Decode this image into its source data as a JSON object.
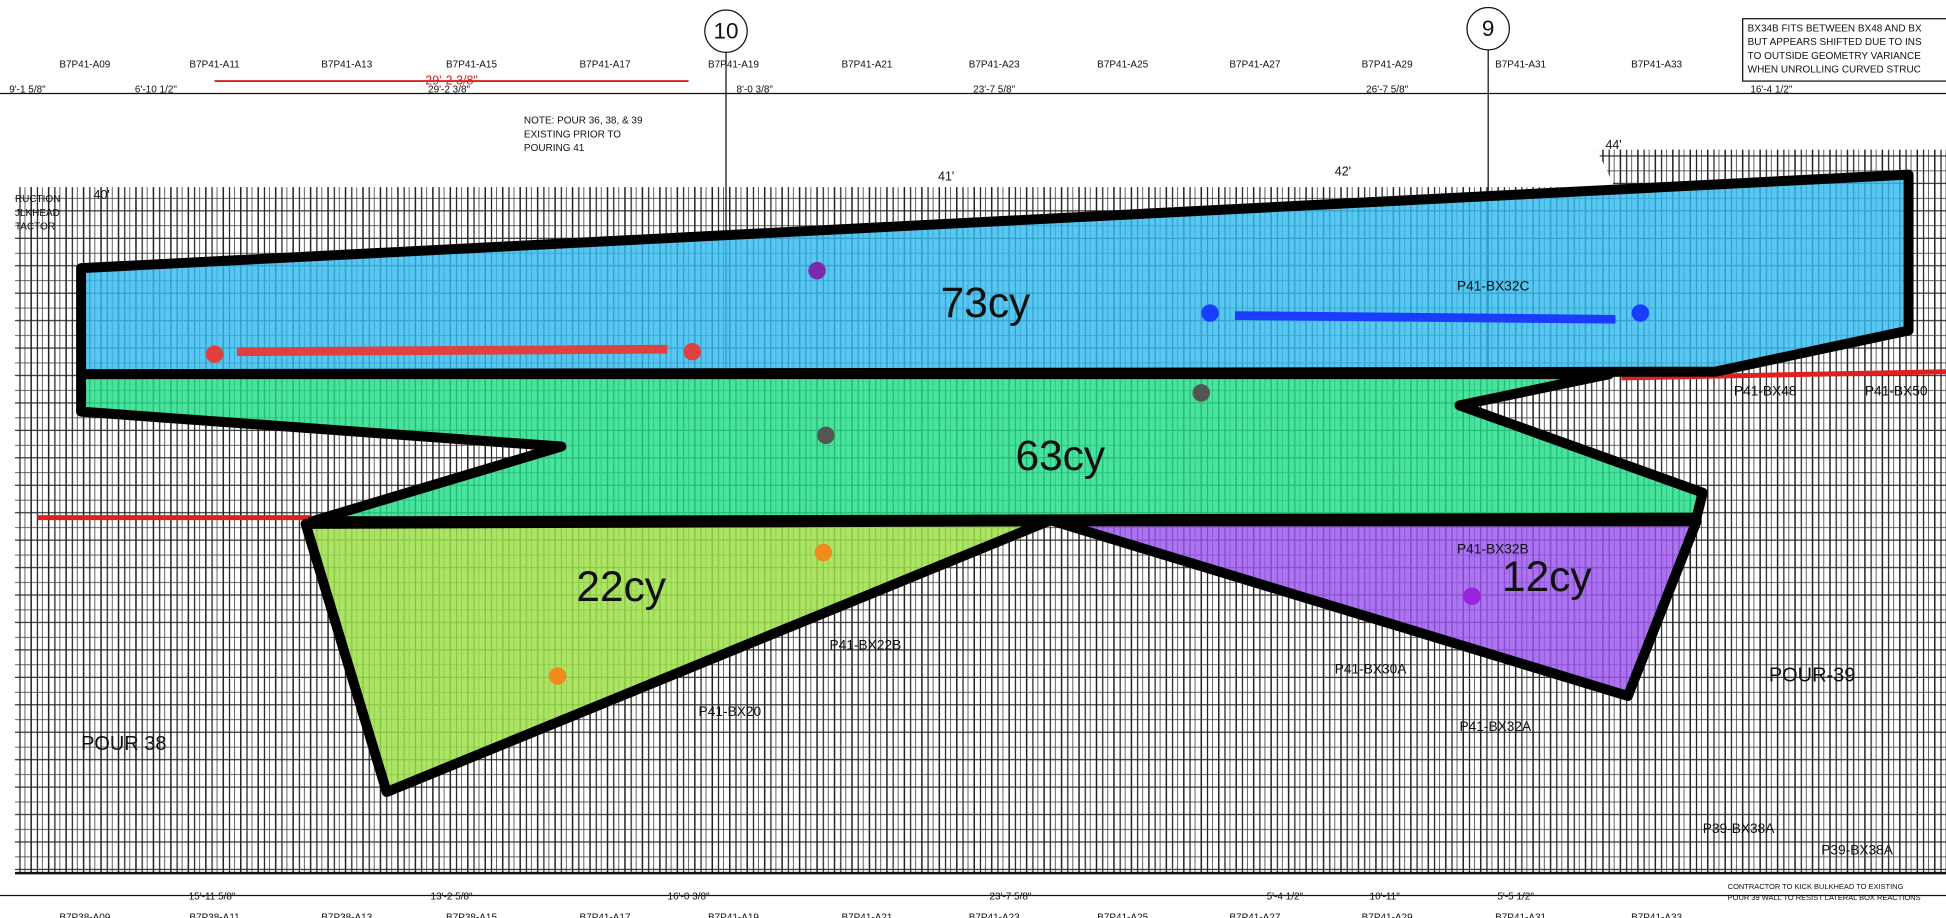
{
  "grid_top": [
    "B7P41-A09",
    "B7P41-A11",
    "B7P41-A13",
    "B7P41-A15",
    "B7P41-A17",
    "B7P41-A19",
    "B7P41-A21",
    "B7P41-A23",
    "B7P41-A25",
    "B7P41-A27",
    "B7P41-A29",
    "B7P41-A31",
    "B7P41-A33"
  ],
  "grid_bottom": [
    "B7P38-A09",
    "B7P38-A11",
    "B7P38-A13",
    "B7P38-A15",
    "B7P41-A17",
    "B7P41-A19",
    "B7P41-A21",
    "B7P41-A23",
    "B7P41-A25",
    "B7P41-A27",
    "B7P41-A29",
    "B7P41-A31",
    "B7P41-A33"
  ],
  "dims_top": [
    "9'-1 5/8\"",
    "6'-10 1/2\"",
    "29'-2 3/8\"",
    "8'-0 3/8\"",
    "23'-7 5/8\"",
    "26'-7 5/8\"",
    "16'-4 1/2\""
  ],
  "dims_bottom": [
    "15'-11 5/8\"",
    "13'-2 5/8\"",
    "16'-0 3/8\"",
    "23'-7 5/8\"",
    "5'-4 1/2\"",
    "10'-11\"",
    "5'-5 1/2\""
  ],
  "red_dim": "29'-2 3/8\"",
  "bubbles": [
    "10",
    "9"
  ],
  "note": [
    "NOTE: POUR 36, 38, & 39",
    "EXISTING PRIOR TO",
    "POURING 41"
  ],
  "side_note": [
    "BX34B FITS BETWEEN BX48 AND BX",
    "BUT APPEARS SHIFTED DUE TO INS",
    "TO OUTSIDE GEOMETRY VARIANCE",
    "WHEN UNROLLING CURVED STRUC"
  ],
  "left_note": [
    "RUCTION",
    "JLKHEAD",
    "TACTOR"
  ],
  "elevations": [
    "40'",
    "41'",
    "42'",
    "44'"
  ],
  "pours": [
    {
      "volume": "73cy"
    },
    {
      "volume": "63cy"
    },
    {
      "volume": "22cy"
    },
    {
      "volume": "12cy"
    }
  ],
  "labels": [
    "POUR 38",
    "POUR-39",
    "P41-BX32A",
    "P41-BX30A",
    "P41-BX32B",
    "P41-BX20",
    "P41-BX22B",
    "P41-BX48",
    "P41-BX50",
    "P41-BX32C",
    "P39-BX38A",
    "P39-BX38A"
  ],
  "contractor_note": [
    "CONTRACTOR TO KICK BULKHEAD TO EXISTING",
    "POUR 39 WALL TO RESIST LATERAL BOX REACTIONS"
  ]
}
